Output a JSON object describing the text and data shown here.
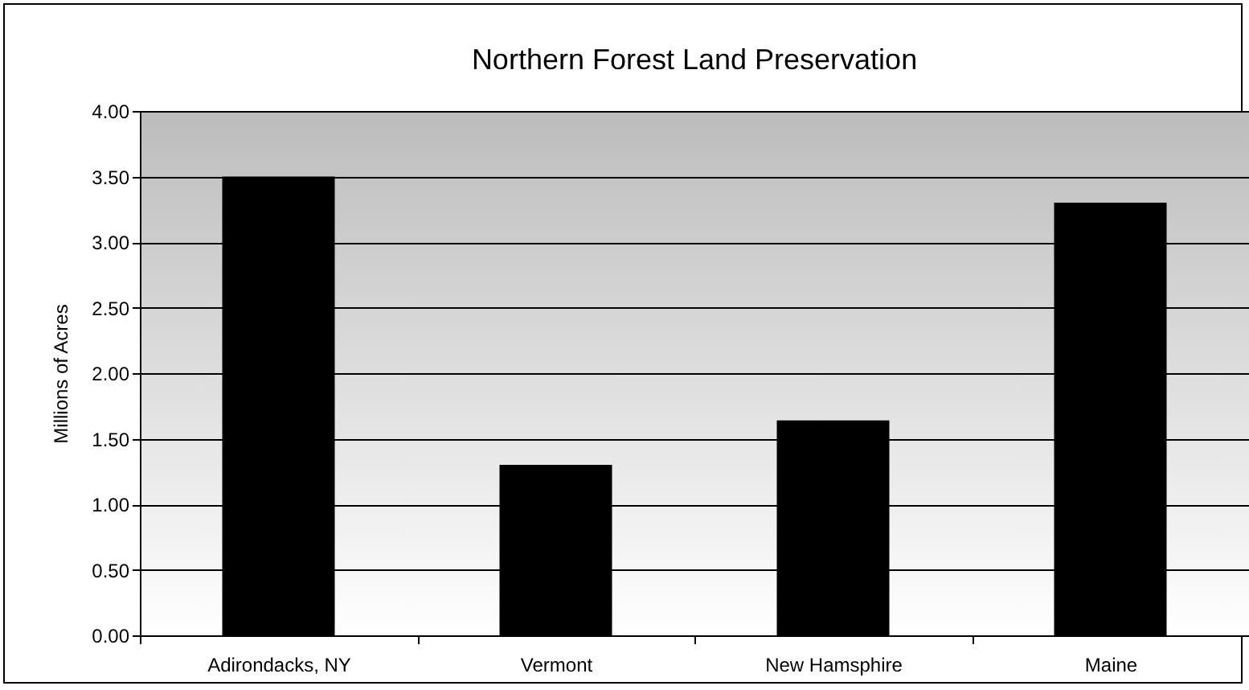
{
  "chart_data": {
    "type": "bar",
    "title": "Northern Forest Land Preservation",
    "ylabel": "Millions of Acres",
    "categories": [
      "Adirondacks, NY",
      "Vermont",
      "New Hamsphire",
      "Maine"
    ],
    "values": [
      3.5,
      1.3,
      1.64,
      3.3
    ],
    "color": "#000000",
    "ylim": [
      0,
      4
    ],
    "yticks": [
      {
        "value": 0,
        "label": "0.00"
      },
      {
        "value": 0.5,
        "label": "0.50"
      },
      {
        "value": 1,
        "label": "1.00"
      },
      {
        "value": 1.5,
        "label": "1.50"
      },
      {
        "value": 2,
        "label": "2.00"
      },
      {
        "value": 2.5,
        "label": "2.50"
      },
      {
        "value": 3,
        "label": "3.00"
      },
      {
        "value": 3.5,
        "label": "3.50"
      },
      {
        "value": 4,
        "label": "4.00"
      }
    ],
    "grid": "y"
  }
}
